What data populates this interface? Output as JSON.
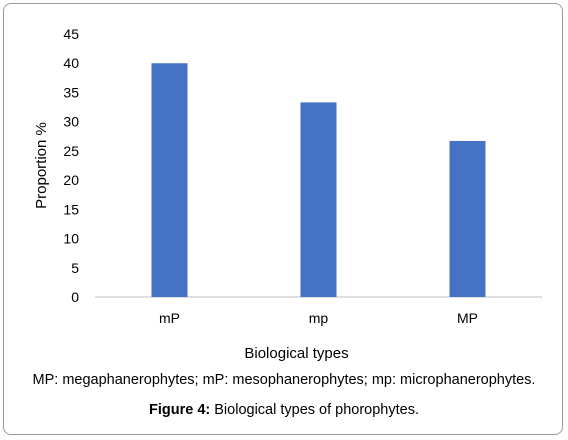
{
  "chart_data": {
    "type": "bar",
    "categories": [
      "mP",
      "mp",
      "MP"
    ],
    "values": [
      40.0,
      33.3,
      26.7
    ],
    "xlabel": "Biological types",
    "ylabel": "Proportion %",
    "ylim": [
      0,
      45
    ],
    "yticks": [
      0,
      5,
      10,
      15,
      20,
      25,
      30,
      35,
      40,
      45
    ],
    "grid": false,
    "bar_color": "#4472C4"
  },
  "note": "MP: megaphanerophytes; mP: mesophanerophytes; mp: microphanerophytes.",
  "caption": {
    "label": "Figure 4:",
    "text": " Biological types of phorophytes."
  }
}
